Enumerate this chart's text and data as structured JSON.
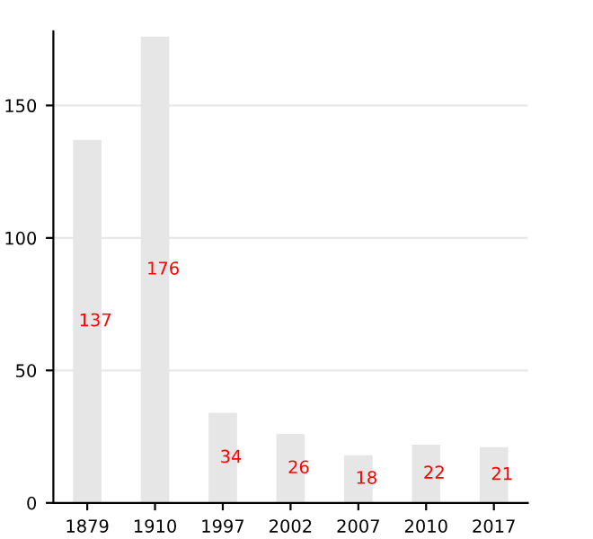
{
  "chart_data": {
    "type": "bar",
    "categories": [
      "1879",
      "1910",
      "1997",
      "2002",
      "2007",
      "2010",
      "2017"
    ],
    "values": [
      137,
      176,
      34,
      26,
      18,
      22,
      21
    ],
    "color": "#e6e6e6",
    "ylim": [
      0,
      178
    ],
    "yticks": [
      0,
      50,
      100,
      150
    ],
    "grid": "y",
    "data_labels": true
  }
}
